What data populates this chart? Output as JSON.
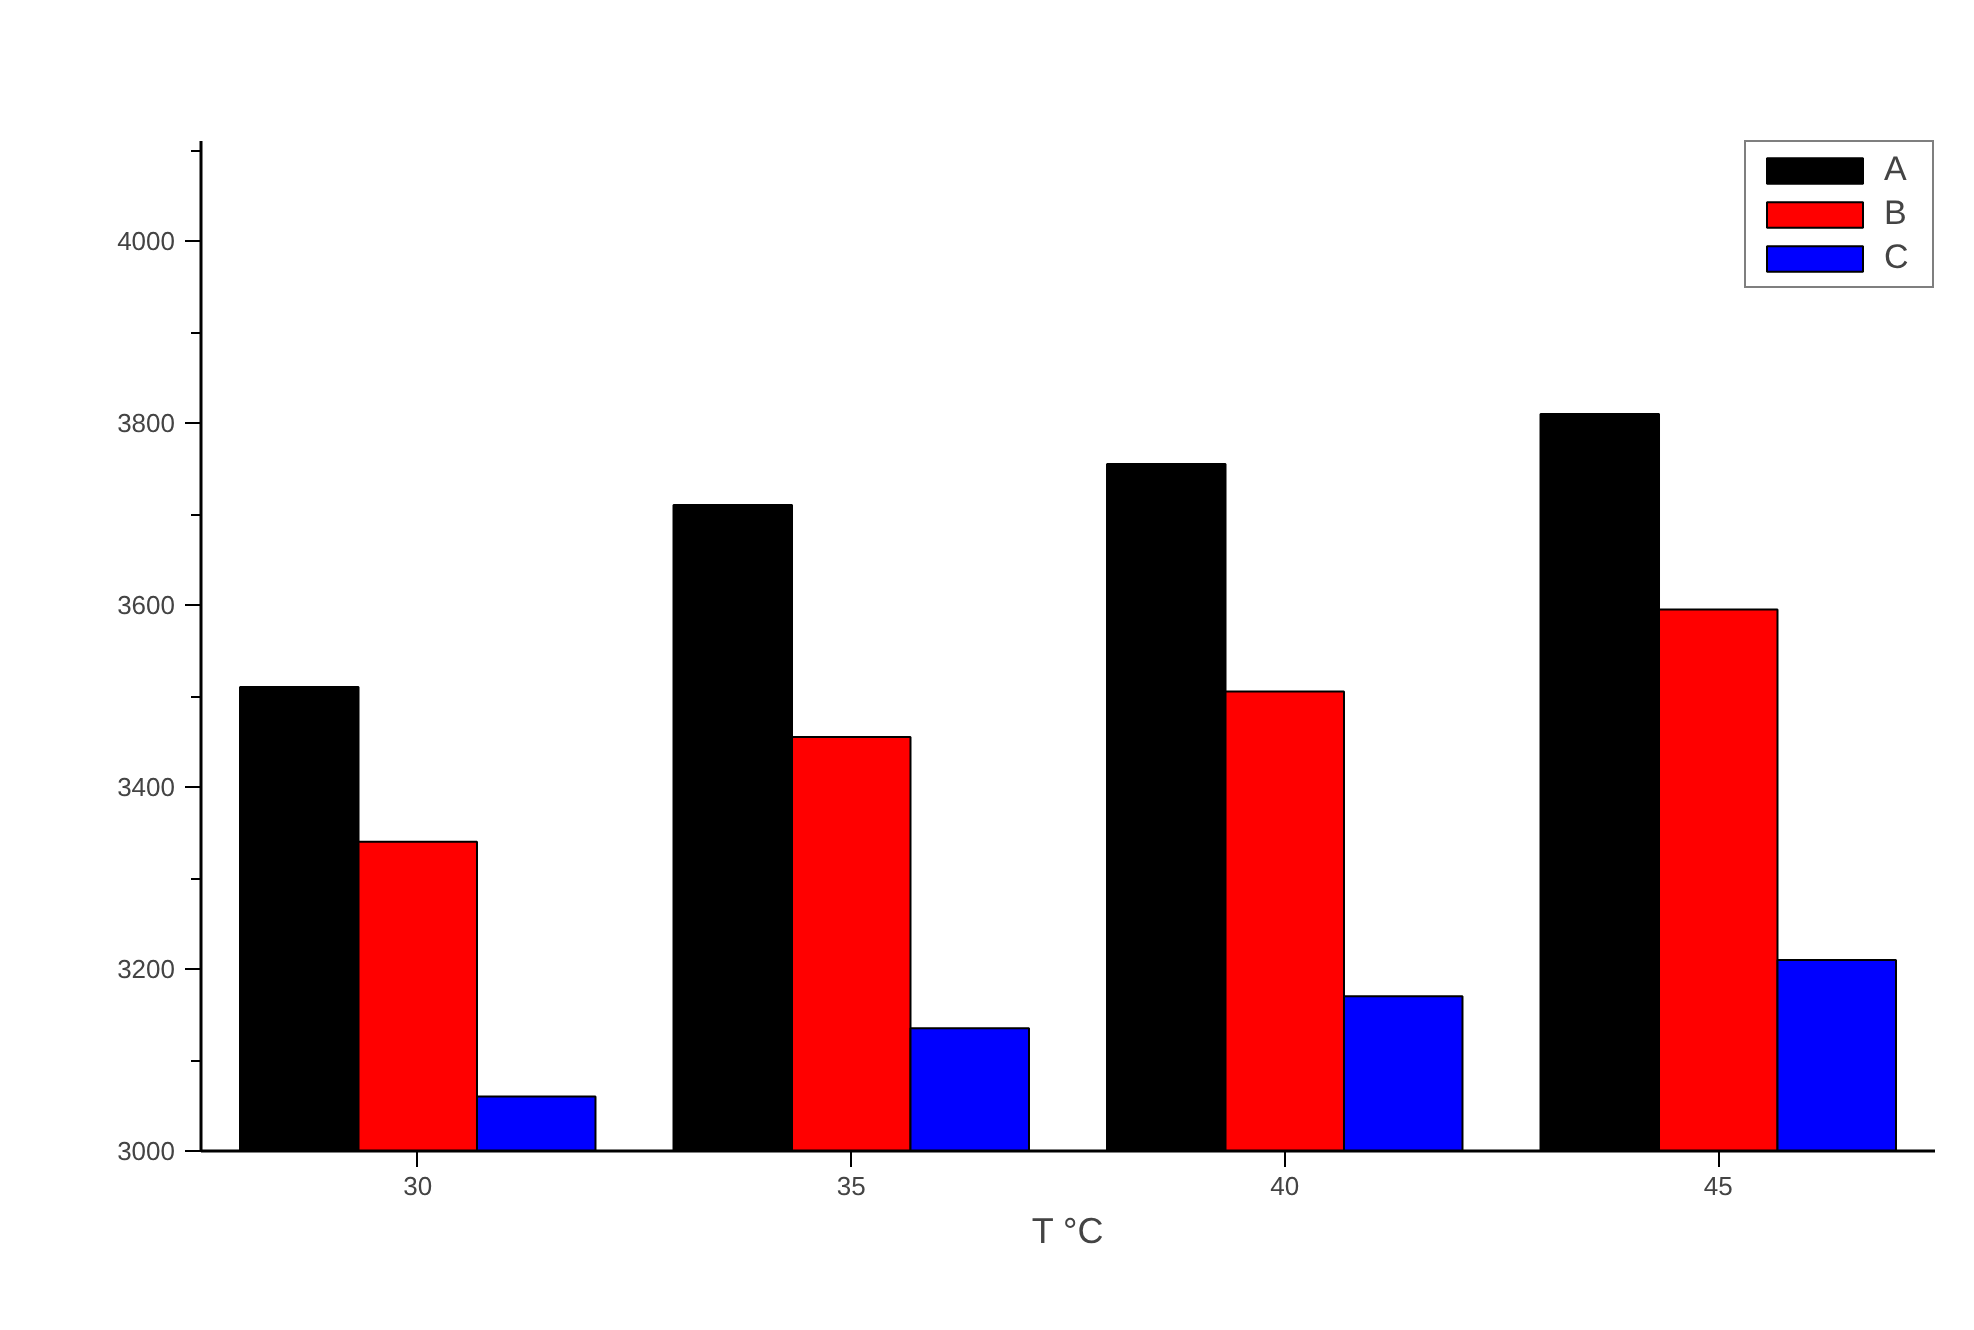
{
  "chart_data": {
    "type": "bar",
    "xlabel": "T °C",
    "categories": [
      "30",
      "35",
      "40",
      "45"
    ],
    "series": [
      {
        "name": "A",
        "color": "#000000",
        "values": [
          3510,
          3710,
          3755,
          3810
        ]
      },
      {
        "name": "B",
        "color": "#ff0000",
        "values": [
          3340,
          3455,
          3505,
          3595
        ]
      },
      {
        "name": "C",
        "color": "#0000ff",
        "values": [
          3060,
          3135,
          3170,
          3210
        ]
      }
    ],
    "ylim": [
      3000,
      4110
    ],
    "yticks": [
      3000,
      3200,
      3400,
      3600,
      3800,
      4000
    ],
    "grid": false,
    "legend": "top right"
  }
}
